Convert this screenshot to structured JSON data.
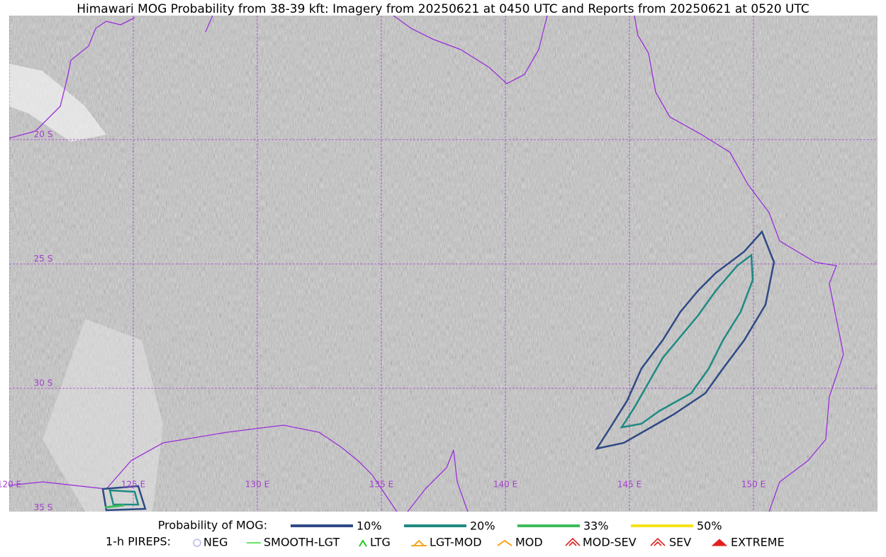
{
  "title": "Himawari MOG Probability from 38-39 kft: Imagery from 20250621 at 0450 UTC and Reports from 20250621 at 0520 UTC",
  "map": {
    "lon_labels": [
      "120 E",
      "125 E",
      "130 E",
      "135 E",
      "140 E",
      "145 E",
      "150 E"
    ],
    "lat_labels": [
      "20 S",
      "25 S",
      "30 S",
      "35 S"
    ]
  },
  "legend": {
    "probability": {
      "label": "Probability of MOG:",
      "items": [
        {
          "label": "10%",
          "color": "#2f4a86"
        },
        {
          "label": "20%",
          "color": "#1f8a82"
        },
        {
          "label": "33%",
          "color": "#3dbb5b"
        },
        {
          "label": "50%",
          "color": "#f5e21a"
        }
      ]
    },
    "pireps": {
      "label": "1-h PIREPS:",
      "items": [
        {
          "label": "NEG",
          "color": "#b8b8f0"
        },
        {
          "label": "SMOOTH-LGT",
          "color": "#33dd33"
        },
        {
          "label": "LTG",
          "color": "#22cc22"
        },
        {
          "label": "LGT-MOD",
          "color": "#f5a623"
        },
        {
          "label": "MOD",
          "color": "#f5a623"
        },
        {
          "label": "MOD-SEV",
          "color": "#e02020"
        },
        {
          "label": "SEV",
          "color": "#e02020"
        },
        {
          "label": "EXTREME",
          "color": "#e02020"
        }
      ]
    }
  }
}
